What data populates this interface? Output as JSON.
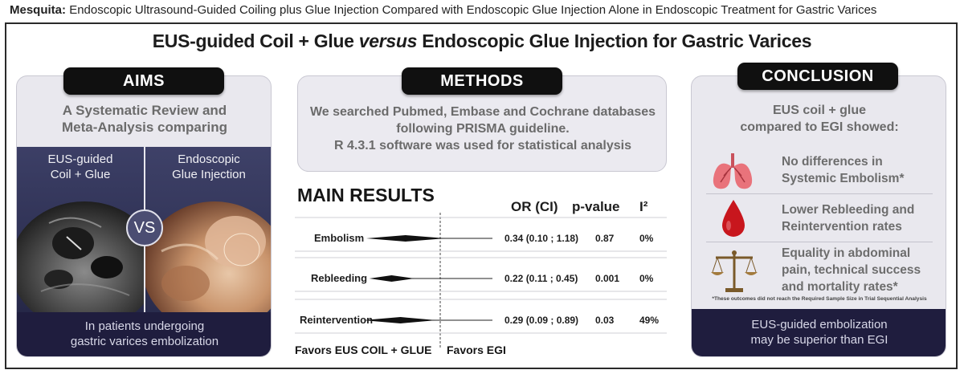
{
  "header": {
    "author": "Mesquita:",
    "citation": "Endoscopic Ultrasound-Guided Coiling plus Glue Injection Compared with Endoscopic Glue Injection Alone in Endoscopic Treatment for Gastric Varices"
  },
  "title": {
    "part1": "EUS-guided Coil + Glue",
    "versus": "versus",
    "part2": "Endoscopic Glue Injection for Gastric Varices"
  },
  "aims": {
    "heading": "AIMS",
    "line1": "A Systematic Review and",
    "line2": "Meta-Analysis comparing",
    "left_image_label1": "EUS-guided",
    "left_image_label2": "Coil + Glue",
    "right_image_label1": "Endoscopic",
    "right_image_label2": "Glue Injection",
    "vs": "VS",
    "footer1": "In patients undergoing",
    "footer2": "gastric varices embolization"
  },
  "methods": {
    "heading": "METHODS",
    "line1": "We searched Pubmed, Embase and Cochrane databases",
    "line2": "following PRISMA guideline.",
    "line3": "R 4.3.1 software was used for statistical analysis"
  },
  "results": {
    "heading": "MAIN RESULTS",
    "col_or": "OR (CI)",
    "col_p": "p-value",
    "col_i2": "I²",
    "favors_left": "Favors EUS COIL + GLUE",
    "favors_right": "Favors EGI",
    "rows": [
      {
        "label": "Embolism",
        "or": 0.34,
        "lo": 0.1,
        "hi": 1.18,
        "or_text": "0.34 (0.10 ; 1.18)",
        "p": "0.87",
        "i2": "0%"
      },
      {
        "label": "Rebleeding",
        "or": 0.22,
        "lo": 0.11,
        "hi": 0.45,
        "or_text": "0.22 (0.11 ; 0.45)",
        "p": "0.001",
        "i2": "0%"
      },
      {
        "label": "Reintervention",
        "or": 0.29,
        "lo": 0.09,
        "hi": 0.89,
        "or_text": "0.29 (0.09 ; 0.89)",
        "p": "0.03",
        "i2": "49%"
      }
    ]
  },
  "conclusion": {
    "heading": "CONCLUSION",
    "intro1": "EUS coil + glue",
    "intro2": "compared to EGI showed:",
    "items": [
      {
        "icon": "lungs-icon",
        "line1": "No differences in",
        "line2": "Systemic Embolism*",
        "line3": ""
      },
      {
        "icon": "blood-drop-icon",
        "line1": "Lower Rebleeding and",
        "line2": "Reintervention rates",
        "line3": ""
      },
      {
        "icon": "scales-icon",
        "line1": "Equality in abdominal",
        "line2": "pain, technical success",
        "line3": "and mortality rates*"
      }
    ],
    "footnote": "*These outcomes did not reach the Required Sample Size in Trial Sequential Analysis",
    "footer1": "EUS-guided embolization",
    "footer2": "may be superior than EGI"
  },
  "colors": {
    "navy": "#1f1d3e",
    "panel": "#e9e8ee",
    "pill": "#101010",
    "drop": "#c8161d",
    "lungs": "#e9737b"
  }
}
